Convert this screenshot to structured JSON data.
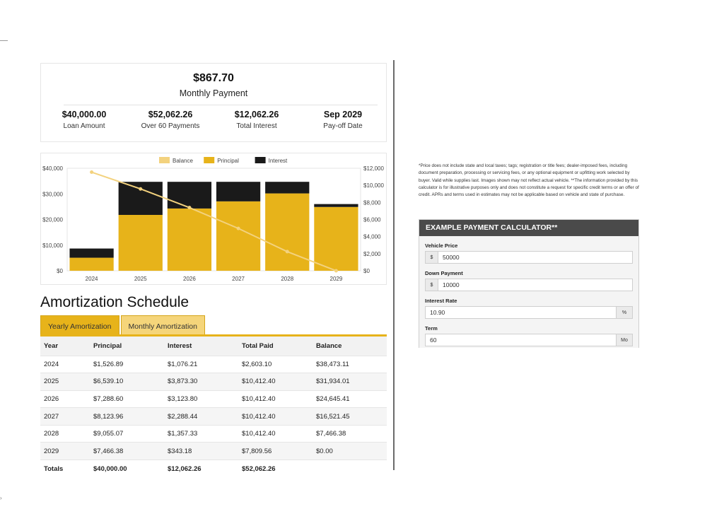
{
  "summary": {
    "monthly_payment": "$867.70",
    "monthly_payment_label": "Monthly Payment",
    "stats": [
      {
        "value": "$40,000.00",
        "label": "Loan Amount"
      },
      {
        "value": "$52,062.26",
        "label": "Over 60 Payments"
      },
      {
        "value": "$12,062.26",
        "label": "Total Interest"
      },
      {
        "value": "Sep 2029",
        "label": "Pay-off Date"
      }
    ]
  },
  "chart_data": {
    "type": "bar",
    "categories": [
      "2024",
      "2025",
      "2026",
      "2027",
      "2028",
      "2029"
    ],
    "series": [
      {
        "name": "Balance",
        "type": "line",
        "axis": "left",
        "color": "#f3d27e",
        "values": [
          38473.11,
          31934.01,
          24645.41,
          16521.45,
          7466.38,
          0
        ]
      },
      {
        "name": "Principal",
        "type": "bar",
        "axis": "right",
        "color": "#e7b31a",
        "values": [
          1526.89,
          6539.1,
          7288.6,
          8123.96,
          9055.07,
          7466.38
        ]
      },
      {
        "name": "Interest",
        "type": "bar",
        "axis": "right",
        "color": "#1a1a1a",
        "values": [
          1076.21,
          3873.3,
          3123.8,
          2288.44,
          1357.33,
          343.18
        ]
      }
    ],
    "left_ticks": [
      "$0",
      "$10,000",
      "$20,000",
      "$30,000",
      "$40,000"
    ],
    "right_ticks": [
      "$0",
      "$2,000",
      "$4,000",
      "$6,000",
      "$8,000",
      "$10,000",
      "$12,000"
    ],
    "ylim_left": [
      0,
      40000
    ],
    "ylim_right": [
      0,
      12000
    ],
    "stacked": true,
    "legend_position": "top-center",
    "grid": false
  },
  "amortization": {
    "title": "Amortization Schedule",
    "tabs": [
      "Yearly Amortization",
      "Monthly Amortization"
    ],
    "columns": [
      "Year",
      "Principal",
      "Interest",
      "Total Paid",
      "Balance"
    ],
    "rows": [
      [
        "2024",
        "$1,526.89",
        "$1,076.21",
        "$2,603.10",
        "$38,473.11"
      ],
      [
        "2025",
        "$6,539.10",
        "$3,873.30",
        "$10,412.40",
        "$31,934.01"
      ],
      [
        "2026",
        "$7,288.60",
        "$3,123.80",
        "$10,412.40",
        "$24,645.41"
      ],
      [
        "2027",
        "$8,123.96",
        "$2,288.44",
        "$10,412.40",
        "$16,521.45"
      ],
      [
        "2028",
        "$9,055.07",
        "$1,357.33",
        "$10,412.40",
        "$7,466.38"
      ],
      [
        "2029",
        "$7,466.38",
        "$343.18",
        "$7,809.56",
        "$0.00"
      ]
    ],
    "totals": [
      "Totals",
      "$40,000.00",
      "$12,062.26",
      "$52,062.26",
      ""
    ]
  },
  "disclaimer": "*Price does not include state and local taxes; tags; registration or title fees; dealer-imposed fees, including document preparation, processing or servicing fees, or any optional equipment or upfitting work selected by buyer. Valid while supplies last. Images shown may not reflect actual vehicle. **The information provided by this calculator is for illustrative purposes only and does not constitute a request for specific credit terms or an offer of credit. APRs and terms used in estimates may not be applicable based on vehicle and state of purchase.",
  "calculator": {
    "title": "EXAMPLE PAYMENT CALCULATOR**",
    "vehicle_price_label": "Vehicle Price",
    "vehicle_price_prefix": "$",
    "vehicle_price_value": "50000",
    "down_payment_label": "Down Payment",
    "down_payment_prefix": "$",
    "down_payment_value": "10000",
    "interest_rate_label": "Interest Rate",
    "interest_rate_value": "10.90",
    "interest_rate_suffix": "%",
    "term_label": "Term",
    "term_value": "60",
    "term_suffix": "Mo"
  }
}
